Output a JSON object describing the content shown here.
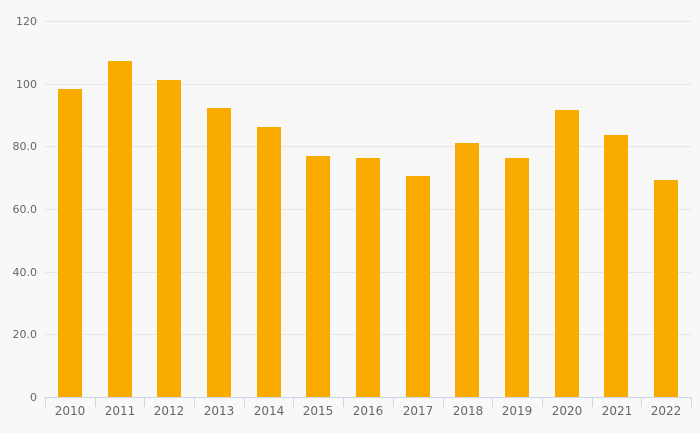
{
  "chart_data": {
    "type": "bar",
    "title": "",
    "xlabel": "",
    "ylabel": "",
    "categories": [
      "2010",
      "2011",
      "2012",
      "2013",
      "2014",
      "2015",
      "2016",
      "2017",
      "2018",
      "2019",
      "2020",
      "2021",
      "2022"
    ],
    "values": [
      98.3,
      107.3,
      101.2,
      92.2,
      86.3,
      77.0,
      76.4,
      70.6,
      81.0,
      76.2,
      91.7,
      83.6,
      69.3
    ],
    "ylim": [
      0,
      120
    ],
    "yticks": [
      0,
      20,
      40,
      60,
      80,
      100,
      120
    ],
    "ytick_labels": [
      "0",
      "20.0",
      "40.0",
      "60.0",
      "80.0",
      "100",
      "120"
    ],
    "grid": true,
    "legend": false,
    "colors": {
      "bar": "#f9ab00",
      "background": "#f8f8f8",
      "gridline": "#e6e6e6",
      "axis_line": "#ccd6eb",
      "tick": "#ccd6eb",
      "label_text": "#666666"
    }
  }
}
